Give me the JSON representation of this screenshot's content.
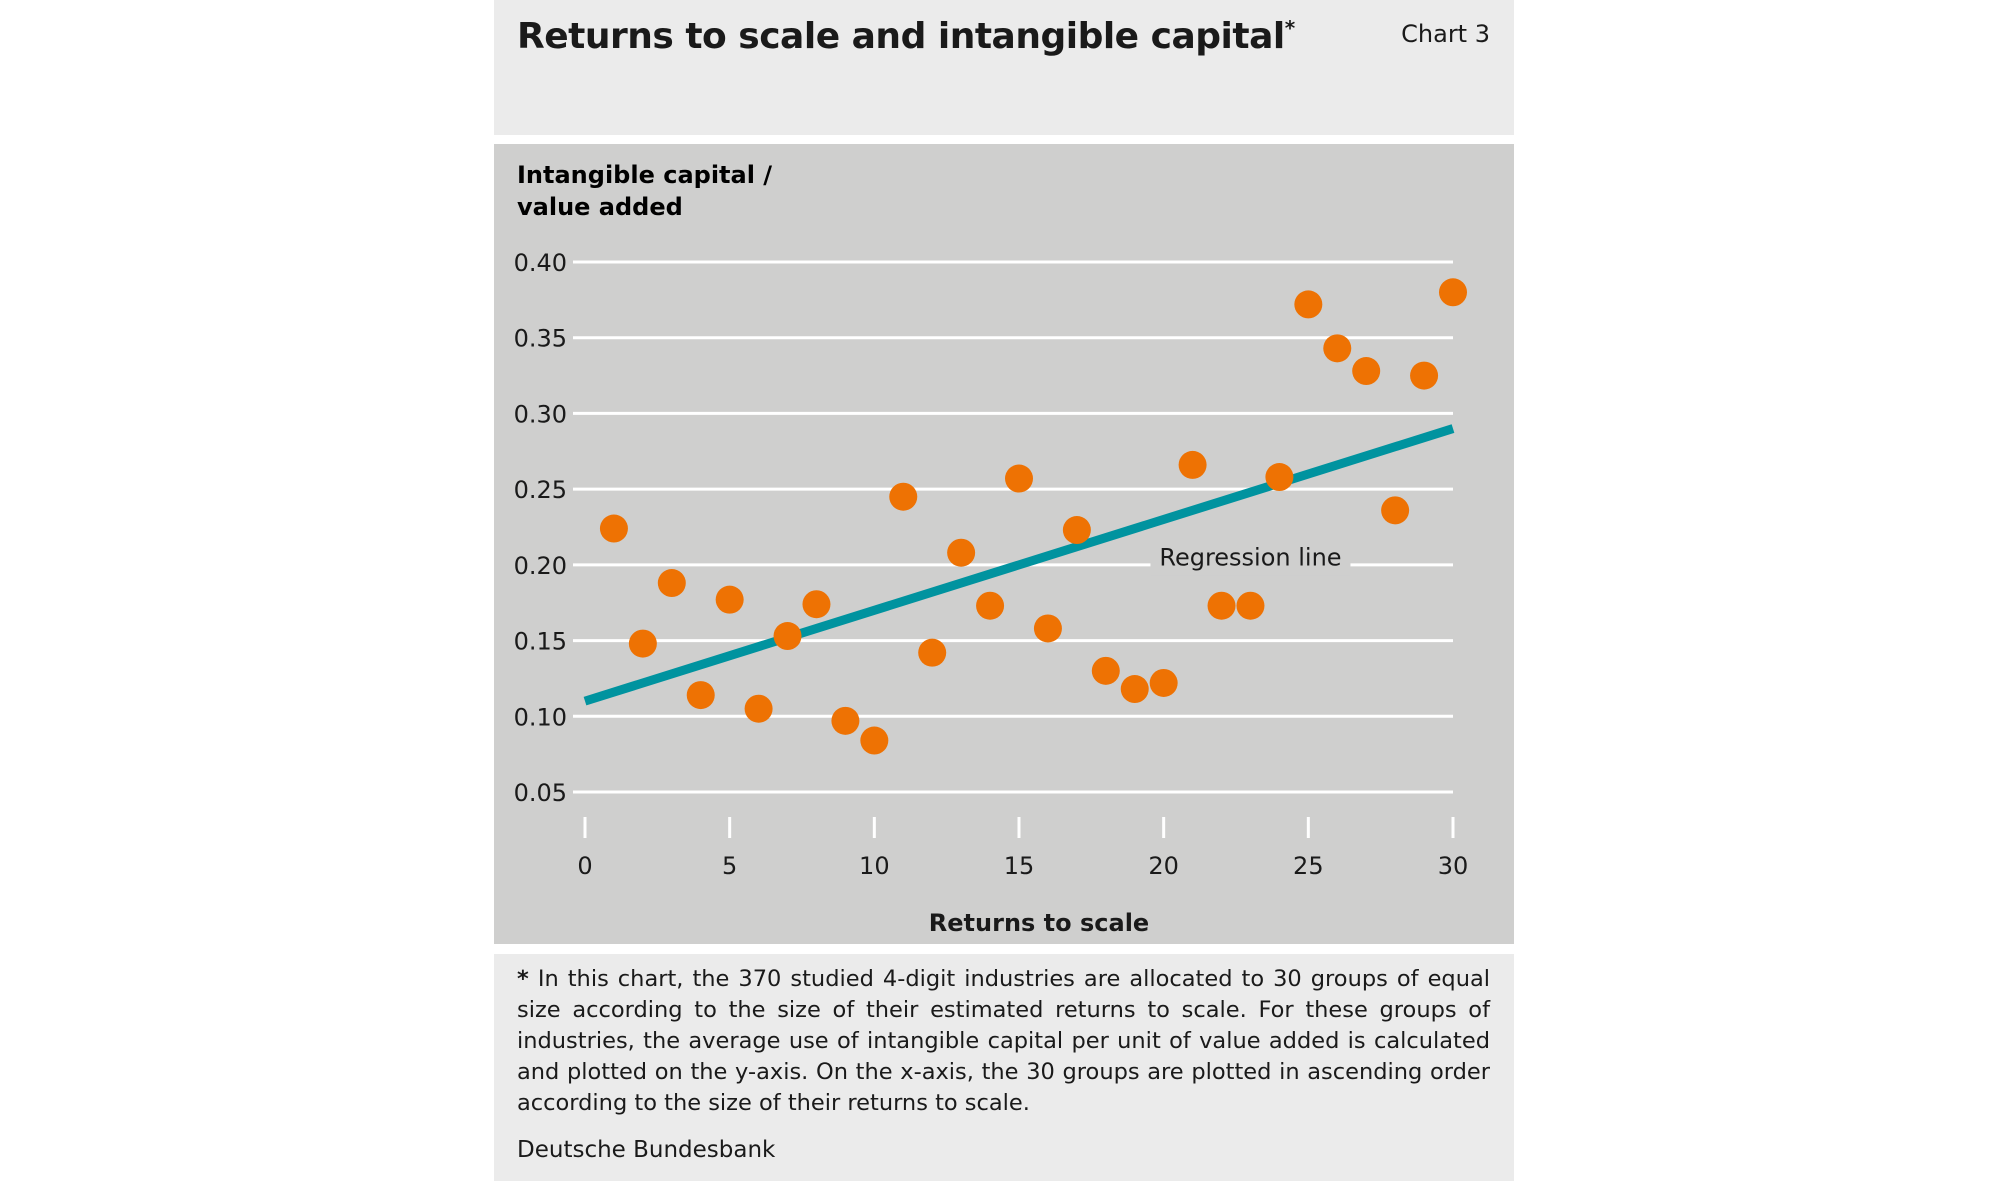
{
  "header": {
    "title": "Returns to scale and intangible capital",
    "title_marker": "*",
    "chart_number": "Chart 3"
  },
  "footnote": {
    "marker": "*",
    "text": "In this chart, the 370 studied 4-digit industries are allocated to 30 groups of equal size according to the size of their estimated returns to scale. For these groups of industries, the average use of intangible capital per unit of value added is calculated and plotted on the y-axis. On the x-axis, the 30 groups are plotted in ascending order according to the size of their returns to scale."
  },
  "source": "Deutsche Bundesbank",
  "colors": {
    "points": "#ee7203",
    "regression": "#00939f",
    "plot_background": "#cfcfce",
    "panel_background": "#ebebeb",
    "gridlines": "#ffffff"
  },
  "chart_data": {
    "type": "scatter",
    "title": "Returns to scale and intangible capital",
    "ylabel_lines": [
      "Intangible capital /",
      "value added"
    ],
    "xlabel": "Returns to scale",
    "xlim": [
      0,
      30
    ],
    "ylim": [
      0.05,
      0.4
    ],
    "xticks": [
      0,
      5,
      10,
      15,
      20,
      25,
      30
    ],
    "yticks": [
      0.05,
      0.1,
      0.15,
      0.2,
      0.25,
      0.3,
      0.35,
      0.4
    ],
    "ytick_labels": [
      "0.05",
      "0.10",
      "0.15",
      "0.20",
      "0.25",
      "0.30",
      "0.35",
      "0.40"
    ],
    "grid": "horizontal",
    "x": [
      1,
      2,
      3,
      4,
      5,
      6,
      7,
      8,
      9,
      10,
      11,
      12,
      13,
      14,
      15,
      16,
      17,
      18,
      19,
      20,
      21,
      22,
      23,
      24,
      25,
      26,
      27,
      28,
      29,
      30
    ],
    "y": [
      0.224,
      0.148,
      0.188,
      0.114,
      0.177,
      0.105,
      0.153,
      0.174,
      0.097,
      0.084,
      0.245,
      0.142,
      0.208,
      0.173,
      0.257,
      0.158,
      0.223,
      0.13,
      0.118,
      0.122,
      0.266,
      0.173,
      0.173,
      0.258,
      0.372,
      0.343,
      0.328,
      0.236,
      0.325,
      0.38
    ],
    "regression": {
      "label": "Regression line",
      "x": [
        0,
        30
      ],
      "y": [
        0.11,
        0.29
      ],
      "label_at": [
        23,
        0.205
      ]
    }
  }
}
